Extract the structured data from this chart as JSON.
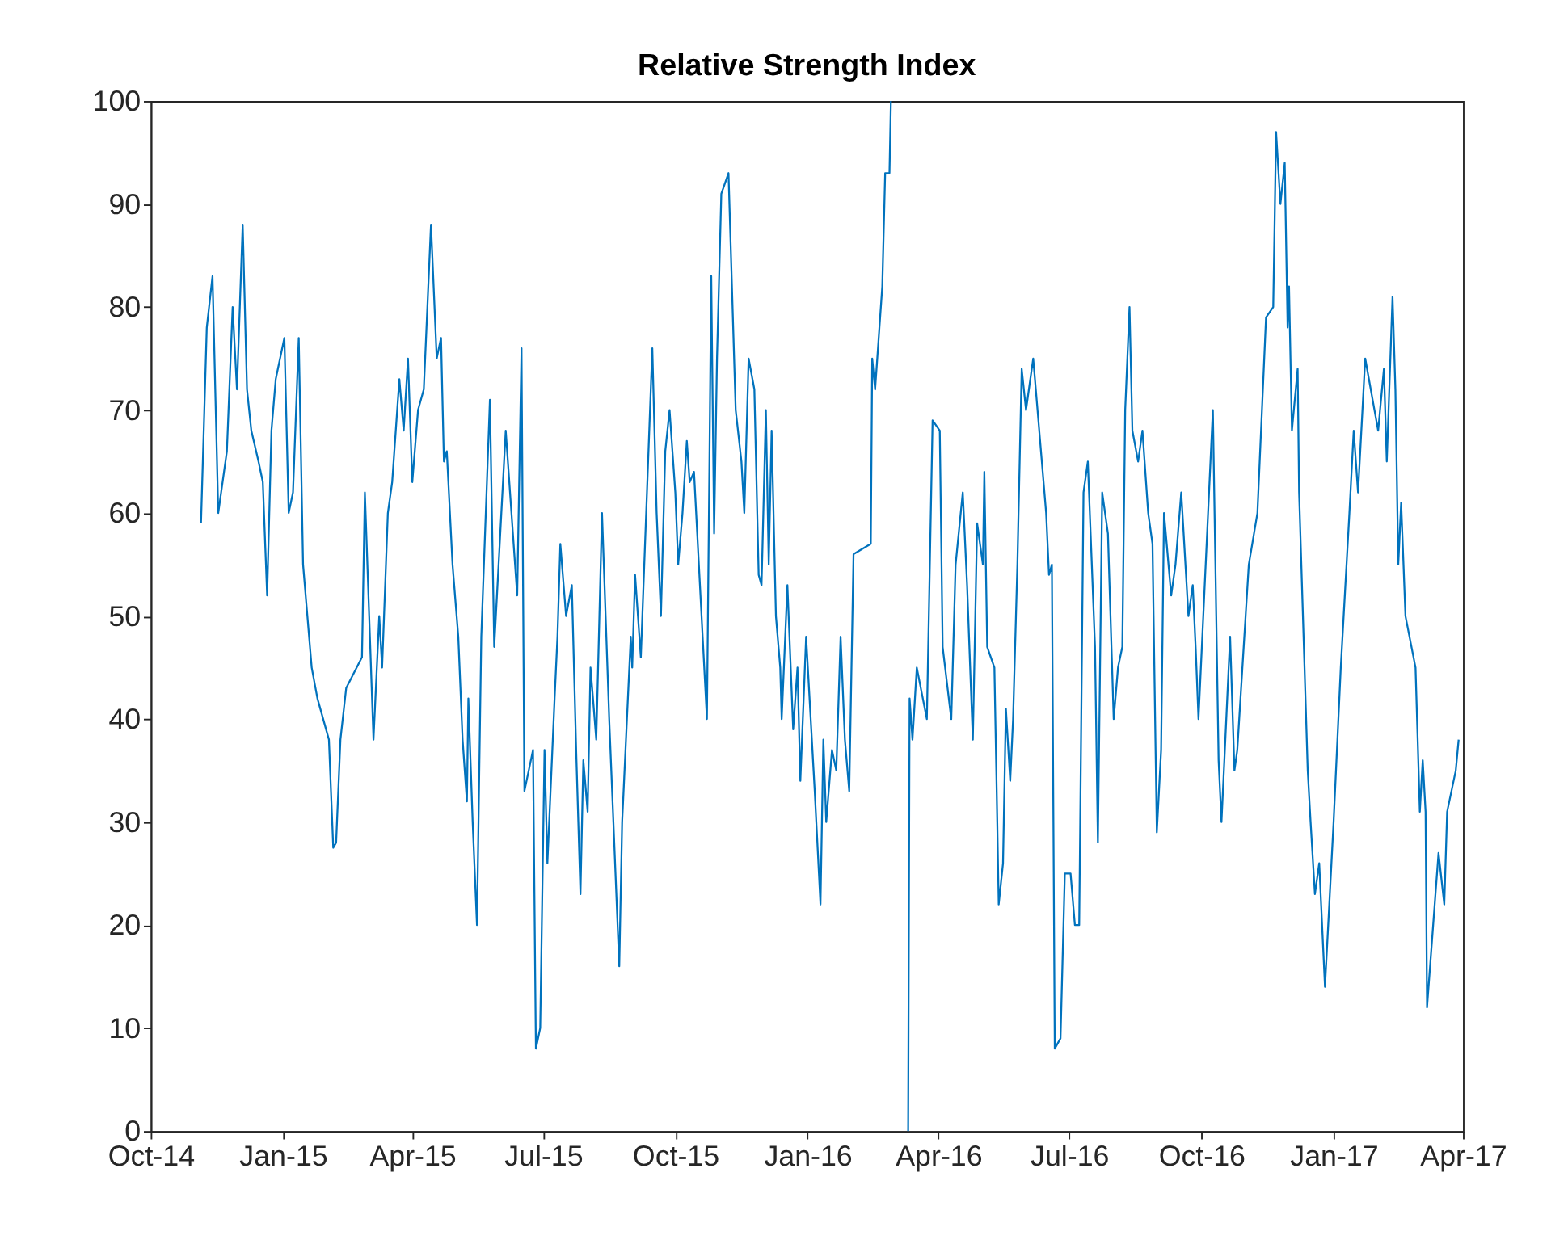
{
  "chart_data": {
    "type": "line",
    "title": "Relative Strength Index",
    "xlim": [
      "2014-10-01",
      "2017-04-01"
    ],
    "xticks": [
      {
        "value": "2014-10-01",
        "label": "Oct-14"
      },
      {
        "value": "2015-01-01",
        "label": "Jan-15"
      },
      {
        "value": "2015-04-01",
        "label": "Apr-15"
      },
      {
        "value": "2015-07-01",
        "label": "Jul-15"
      },
      {
        "value": "2015-10-01",
        "label": "Oct-15"
      },
      {
        "value": "2016-01-01",
        "label": "Jan-16"
      },
      {
        "value": "2016-04-01",
        "label": "Apr-16"
      },
      {
        "value": "2016-07-01",
        "label": "Jul-16"
      },
      {
        "value": "2016-10-01",
        "label": "Oct-16"
      },
      {
        "value": "2017-01-01",
        "label": "Jan-17"
      },
      {
        "value": "2017-04-01",
        "label": "Apr-17"
      }
    ],
    "ylim": [
      0,
      100
    ],
    "yticks": [
      0,
      10,
      20,
      30,
      40,
      50,
      60,
      70,
      80,
      90,
      100
    ],
    "grid": false,
    "marker": "none",
    "line_style": "solid",
    "series": [
      {
        "color": "#0072bd",
        "x": [
          "2014-11-05",
          "2014-11-09",
          "2014-11-13",
          "2014-11-17",
          "2014-11-23",
          "2014-11-27",
          "2014-11-30",
          "2014-12-04",
          "2014-12-07",
          "2014-12-10",
          "2014-12-15",
          "2014-12-18",
          "2014-12-21",
          "2014-12-24",
          "2014-12-27",
          "2015-01-02",
          "2015-01-05",
          "2015-01-08",
          "2015-01-12",
          "2015-01-15",
          "2015-01-18",
          "2015-01-21",
          "2015-01-25",
          "2015-01-29",
          "2015-02-02",
          "2015-02-05",
          "2015-02-07",
          "2015-02-10",
          "2015-02-14",
          "2015-02-25",
          "2015-02-27",
          "2015-03-05",
          "2015-03-09",
          "2015-03-11",
          "2015-03-15",
          "2015-03-18",
          "2015-03-23",
          "2015-03-26",
          "2015-03-29",
          "2015-04-01",
          "2015-04-05",
          "2015-04-09",
          "2015-04-14",
          "2015-04-18",
          "2015-04-21",
          "2015-04-23",
          "2015-04-25",
          "2015-04-29",
          "2015-05-03",
          "2015-05-06",
          "2015-05-09",
          "2015-05-10",
          "2015-05-13",
          "2015-05-16",
          "2015-05-19",
          "2015-05-25",
          "2015-05-28",
          "2015-06-05",
          "2015-06-09",
          "2015-06-13",
          "2015-06-16",
          "2015-06-18",
          "2015-06-24",
          "2015-06-26",
          "2015-06-29",
          "2015-07-02",
          "2015-07-04",
          "2015-07-09",
          "2015-07-11",
          "2015-07-13",
          "2015-07-17",
          "2015-07-21",
          "2015-07-24",
          "2015-07-27",
          "2015-07-29",
          "2015-08-01",
          "2015-08-03",
          "2015-08-07",
          "2015-08-11",
          "2015-08-16",
          "2015-08-23",
          "2015-08-25",
          "2015-08-31",
          "2015-09-01",
          "2015-09-03",
          "2015-09-05",
          "2015-09-07",
          "2015-09-15",
          "2015-09-18",
          "2015-09-21",
          "2015-09-24",
          "2015-09-27",
          "2015-10-01",
          "2015-10-03",
          "2015-10-06",
          "2015-10-09",
          "2015-10-11",
          "2015-10-14",
          "2015-10-23",
          "2015-10-26",
          "2015-10-28",
          "2015-10-30",
          "2015-11-02",
          "2015-11-07",
          "2015-11-12",
          "2015-11-16",
          "2015-11-18",
          "2015-11-21",
          "2015-11-25",
          "2015-11-28",
          "2015-11-30",
          "2015-12-03",
          "2015-12-05",
          "2015-12-07",
          "2015-12-10",
          "2015-12-13",
          "2015-12-14",
          "2015-12-18",
          "2015-12-22",
          "2015-12-25",
          "2015-12-27",
          "2015-12-31",
          "2016-01-06",
          "2016-01-10",
          "2016-01-12",
          "2016-01-14",
          "2016-01-18",
          "2016-01-21",
          "2016-01-24",
          "2016-01-27",
          "2016-01-30",
          "2016-02-02",
          "2016-02-14",
          "2016-02-15",
          "2016-02-17",
          "2016-02-20",
          "2016-02-22",
          "2016-02-24",
          "2016-02-27",
          "2016-02-28",
          "2016-03-05",
          "2016-03-11",
          "2016-03-12",
          "2016-03-14",
          "2016-03-17",
          "2016-03-24",
          "2016-03-28",
          "2016-04-02",
          "2016-04-04",
          "2016-04-10",
          "2016-04-13",
          "2016-04-18",
          "2016-04-21",
          "2016-04-25",
          "2016-04-28",
          "2016-05-02",
          "2016-05-03",
          "2016-05-05",
          "2016-05-10",
          "2016-05-12",
          "2016-05-13",
          "2016-05-16",
          "2016-05-18",
          "2016-05-21",
          "2016-05-23",
          "2016-05-26",
          "2016-05-29",
          "2016-06-01",
          "2016-06-06",
          "2016-06-15",
          "2016-06-17",
          "2016-06-19",
          "2016-06-21",
          "2016-06-25",
          "2016-06-28",
          "2016-07-02",
          "2016-07-05",
          "2016-07-08",
          "2016-07-11",
          "2016-07-14",
          "2016-07-19",
          "2016-07-21",
          "2016-07-24",
          "2016-07-28",
          "2016-08-01",
          "2016-08-04",
          "2016-08-07",
          "2016-08-09",
          "2016-08-12",
          "2016-08-14",
          "2016-08-18",
          "2016-08-21",
          "2016-08-25",
          "2016-08-28",
          "2016-08-31",
          "2016-09-03",
          "2016-09-05",
          "2016-09-10",
          "2016-09-13",
          "2016-09-17",
          "2016-09-22",
          "2016-09-25",
          "2016-09-27",
          "2016-09-29",
          "2016-10-09",
          "2016-10-13",
          "2016-10-15",
          "2016-10-21",
          "2016-10-24",
          "2016-10-26",
          "2016-11-03",
          "2016-11-09",
          "2016-11-15",
          "2016-11-20",
          "2016-11-22",
          "2016-11-25",
          "2016-11-28",
          "2016-11-30",
          "2016-12-01",
          "2016-12-03",
          "2016-12-07",
          "2016-12-08",
          "2016-12-14",
          "2016-12-16",
          "2016-12-19",
          "2016-12-22",
          "2016-12-26",
          "2016-12-29",
          "2017-01-01",
          "2017-01-06",
          "2017-01-12",
          "2017-01-15",
          "2017-01-18",
          "2017-01-23",
          "2017-02-01",
          "2017-02-05",
          "2017-02-07",
          "2017-02-11",
          "2017-02-13",
          "2017-02-15",
          "2017-02-17",
          "2017-02-20",
          "2017-02-27",
          "2017-03-02",
          "2017-03-04",
          "2017-03-06",
          "2017-03-07",
          "2017-03-15",
          "2017-03-19",
          "2017-03-21",
          "2017-03-27",
          "2017-03-29"
        ],
        "values": [
          59,
          78,
          83,
          60,
          66,
          80,
          72,
          88,
          72,
          68,
          65,
          63,
          52,
          68,
          73,
          77,
          60,
          62,
          77,
          55,
          50,
          45,
          42,
          40,
          38,
          27.5,
          28,
          38,
          43,
          46,
          62,
          38,
          50,
          45,
          60,
          63,
          73,
          68,
          75,
          63,
          70,
          72,
          88,
          75,
          77,
          65,
          66,
          55,
          48,
          38,
          32,
          42,
          30,
          20,
          48,
          71,
          47,
          68,
          60,
          52,
          76,
          33,
          37,
          8,
          10,
          37,
          26,
          42,
          48,
          57,
          50,
          53,
          37,
          23,
          36,
          31,
          45,
          38,
          60,
          40,
          16,
          30,
          48,
          45,
          54,
          50,
          46,
          76,
          60,
          50,
          66,
          70,
          62,
          55,
          60,
          67,
          63,
          64,
          40,
          83,
          58,
          75,
          91,
          93,
          70,
          65,
          60,
          75,
          72,
          54,
          53,
          70,
          55,
          68,
          50,
          45,
          40,
          53,
          39,
          45,
          34,
          48,
          33,
          22,
          38,
          30,
          37,
          35,
          48,
          38,
          33,
          56,
          57,
          75,
          72,
          78,
          82,
          93,
          93,
          100,
          null,
          0,
          42,
          38,
          45,
          40,
          69,
          68,
          47,
          40,
          55,
          62,
          53,
          38,
          59,
          55,
          64,
          47,
          45,
          30,
          22,
          26,
          41,
          34,
          40,
          55,
          74,
          70,
          75,
          60,
          54,
          55,
          8,
          9,
          25,
          25,
          20,
          20,
          62,
          65,
          47,
          28,
          62,
          58,
          40,
          45,
          47,
          70,
          80,
          68,
          65,
          68,
          60,
          57,
          29,
          37,
          60,
          52,
          55,
          62,
          50,
          53,
          47,
          40,
          70,
          36,
          30,
          48,
          35,
          37,
          55,
          60,
          79,
          80,
          97,
          90,
          94,
          78,
          82,
          68,
          74,
          62,
          35,
          30,
          23,
          26,
          14,
          22,
          30,
          45,
          60,
          68,
          62,
          75,
          68,
          74,
          65,
          81,
          72,
          55,
          61,
          50,
          45,
          31,
          36,
          31,
          12,
          27,
          22,
          31,
          35,
          38
        ]
      }
    ]
  }
}
